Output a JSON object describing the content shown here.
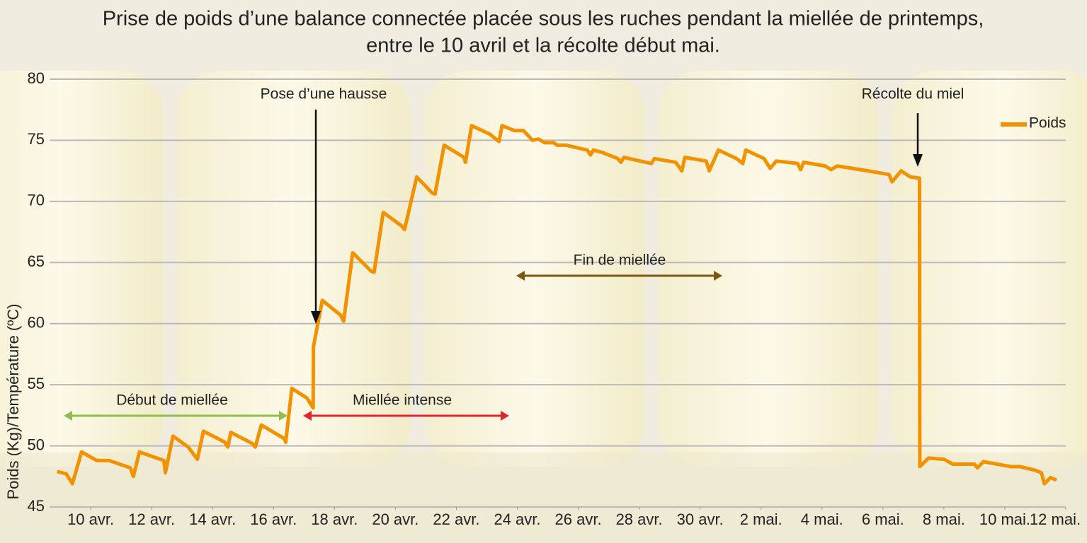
{
  "chart_data": {
    "type": "line",
    "title": [
      "Prise de poids d’une balance connectée placée sous les ruches pendant la miellée de printemps,",
      "entre le 10 avril et la récolte début mai."
    ],
    "y_label": "Poids (Kg)/Température (ºC)",
    "legend": "upper right",
    "grid": true,
    "ylim": [
      45,
      80
    ],
    "yticks": [
      45,
      50,
      55,
      60,
      65,
      70,
      75,
      80
    ],
    "xlim": [
      8.65,
      42.0
    ],
    "xticks": [
      {
        "value": 10,
        "label": "10 avr."
      },
      {
        "value": 12,
        "label": "12 avr."
      },
      {
        "value": 14,
        "label": "14 avr."
      },
      {
        "value": 16,
        "label": "16 avr."
      },
      {
        "value": 18,
        "label": "18 avr."
      },
      {
        "value": 20,
        "label": "20 avr."
      },
      {
        "value": 22,
        "label": "22 avr."
      },
      {
        "value": 24,
        "label": "24 avr."
      },
      {
        "value": 26,
        "label": "26 avr."
      },
      {
        "value": 28,
        "label": "28 avr."
      },
      {
        "value": 30,
        "label": "30 avr."
      },
      {
        "value": 32,
        "label": "2 mai."
      },
      {
        "value": 34,
        "label": "4 mai."
      },
      {
        "value": 36,
        "label": "6 mai."
      },
      {
        "value": 38,
        "label": "8 mai."
      },
      {
        "value": 40,
        "label": "10 mai."
      },
      {
        "value": 42,
        "label": "12 mai."
      }
    ],
    "x": [
      8.9,
      9.2,
      9.4,
      9.7,
      10.2,
      10.6,
      11.3,
      11.4,
      11.6,
      12.4,
      12.45,
      12.7,
      13.2,
      13.5,
      13.7,
      14.4,
      14.5,
      14.6,
      15.3,
      15.4,
      15.6,
      16.35,
      16.4,
      16.6,
      17.1,
      17.3,
      17.31,
      17.6,
      18.2,
      18.3,
      18.6,
      19.2,
      19.3,
      19.6,
      20.2,
      20.3,
      20.7,
      21.2,
      21.3,
      21.6,
      22.25,
      22.3,
      22.5,
      23.1,
      23.4,
      23.5,
      23.9,
      24.2,
      24.5,
      24.7,
      24.9,
      25.2,
      25.3,
      25.6,
      26.3,
      26.4,
      26.5,
      26.8,
      27.3,
      27.4,
      27.5,
      28.4,
      28.5,
      29.2,
      29.4,
      29.5,
      30.2,
      30.3,
      30.6,
      31.2,
      31.4,
      31.5,
      32.1,
      32.3,
      32.5,
      33.2,
      33.3,
      33.4,
      34.1,
      34.3,
      34.5,
      35.5,
      36.2,
      36.3,
      36.6,
      36.9,
      37.2,
      37.21,
      37.5,
      38.0,
      38.3,
      39.0,
      39.1,
      39.3,
      40.2,
      40.5,
      41.0,
      41.2,
      41.3,
      41.5,
      41.7
    ],
    "series": [
      {
        "name": "Poids",
        "color": "#f39200",
        "values": [
          47.9,
          47.7,
          46.9,
          49.5,
          48.8,
          48.8,
          48.2,
          47.5,
          49.5,
          48.8,
          47.8,
          50.8,
          49.9,
          48.9,
          51.2,
          50.3,
          49.9,
          51.1,
          50.2,
          49.9,
          51.7,
          50.6,
          50.3,
          54.7,
          53.9,
          53.1,
          58.1,
          61.9,
          60.7,
          60.2,
          65.8,
          64.3,
          64.2,
          69.1,
          68.0,
          67.7,
          72.0,
          70.7,
          70.6,
          74.6,
          73.6,
          73.2,
          76.2,
          75.5,
          74.9,
          76.2,
          75.8,
          75.8,
          75.0,
          75.1,
          74.8,
          74.8,
          74.6,
          74.6,
          74.2,
          73.8,
          74.2,
          74.0,
          73.5,
          73.2,
          73.6,
          73.1,
          73.5,
          73.2,
          72.5,
          73.6,
          73.3,
          72.5,
          74.2,
          73.5,
          73.1,
          74.2,
          73.5,
          72.7,
          73.3,
          73.1,
          72.6,
          73.2,
          72.9,
          72.6,
          72.9,
          72.5,
          72.2,
          71.6,
          72.5,
          72.0,
          71.9,
          48.3,
          49.0,
          48.9,
          48.5,
          48.5,
          48.2,
          48.7,
          48.3,
          48.3,
          48.0,
          47.8,
          46.9,
          47.4,
          47.2
        ]
      }
    ],
    "annotations": [
      "Pose d’une hausse",
      "Récolte du miel",
      "Début de miellée",
      "Miellée intense",
      "Fin de miellée"
    ]
  }
}
